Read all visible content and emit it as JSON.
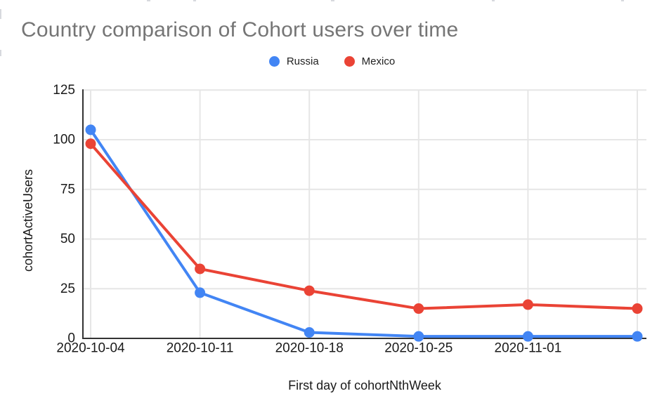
{
  "chart_data": {
    "type": "line",
    "title": "Country comparison of Cohort users over time",
    "xlabel": "First day of cohortNthWeek",
    "ylabel": "cohortActiveUsers",
    "categories": [
      "2020-10-04",
      "2020-10-11",
      "2020-10-18",
      "2020-10-25",
      "2020-11-01",
      ""
    ],
    "series": [
      {
        "name": "Russia",
        "color": "#4285f4",
        "values": [
          105,
          23,
          3,
          1,
          1,
          1
        ]
      },
      {
        "name": "Mexico",
        "color": "#ea4335",
        "values": [
          98,
          35,
          24,
          15,
          17,
          15
        ]
      }
    ],
    "ylim": [
      0,
      125
    ],
    "yticks": [
      0,
      25,
      50,
      75,
      100,
      125
    ],
    "grid": true,
    "legend_position": "top"
  },
  "colors": {
    "background": "#ffffff",
    "title_text": "#757575",
    "tick_label": "#1a1a1a",
    "axis_title": "#1a1a1a",
    "legend_text": "#212121",
    "gridline": "#e6e6e6",
    "axis_line": "#333333",
    "series_russia": "#4285f4",
    "series_mexico": "#ea4335"
  }
}
